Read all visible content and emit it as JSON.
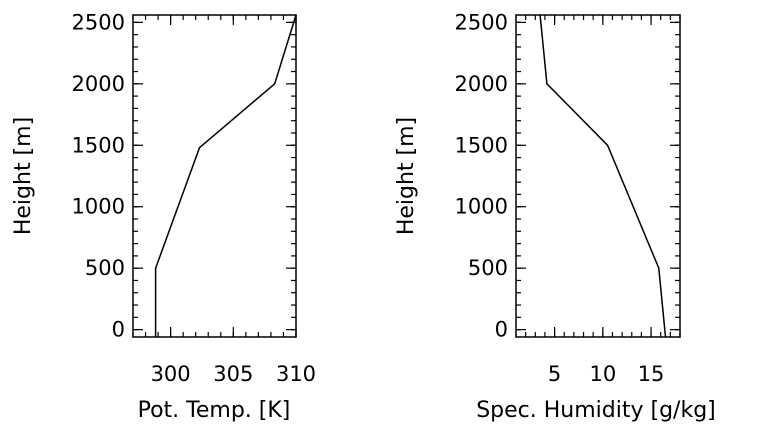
{
  "chart_data": [
    {
      "type": "line",
      "title": "",
      "xlabel": "Pot. Temp. [K]",
      "ylabel": "Height [m]",
      "xlim": [
        297,
        310
      ],
      "ylim": [
        -60,
        2560
      ],
      "xticks": [
        300,
        305,
        310
      ],
      "xtick_labels": [
        "300",
        "305",
        "310"
      ],
      "xminor": [
        297,
        298,
        299,
        300,
        301,
        302,
        303,
        304,
        305,
        306,
        307,
        308,
        309,
        310
      ],
      "yticks": [
        0,
        500,
        1000,
        1500,
        2000,
        2500
      ],
      "ytick_labels": [
        "0",
        "500",
        "1000",
        "1500",
        "2000",
        "2500"
      ],
      "yminor_step": 100,
      "grid": false,
      "series": [
        {
          "x": [
            298.8,
            298.8,
            302.3,
            308.3,
            310.0
          ],
          "y": [
            -60,
            500,
            1480,
            2000,
            2560
          ]
        }
      ]
    },
    {
      "type": "line",
      "title": "",
      "xlabel": "Spec. Humidity [g/kg]",
      "ylabel": "Height [m]",
      "xlim": [
        1,
        18
      ],
      "ylim": [
        -60,
        2560
      ],
      "xticks": [
        5,
        10,
        15
      ],
      "xtick_labels": [
        "5",
        "10",
        "15"
      ],
      "xminor": [
        1,
        2,
        3,
        4,
        5,
        6,
        7,
        8,
        9,
        10,
        11,
        12,
        13,
        14,
        15,
        16,
        17,
        18
      ],
      "yticks": [
        0,
        500,
        1000,
        1500,
        2000,
        2500
      ],
      "ytick_labels": [
        "0",
        "500",
        "1000",
        "1500",
        "2000",
        "2500"
      ],
      "yminor_step": 100,
      "grid": false,
      "series": [
        {
          "x": [
            3.5,
            4.2,
            10.5,
            15.8,
            16.5
          ],
          "y": [
            2560,
            2000,
            1500,
            500,
            -60
          ]
        }
      ]
    }
  ]
}
